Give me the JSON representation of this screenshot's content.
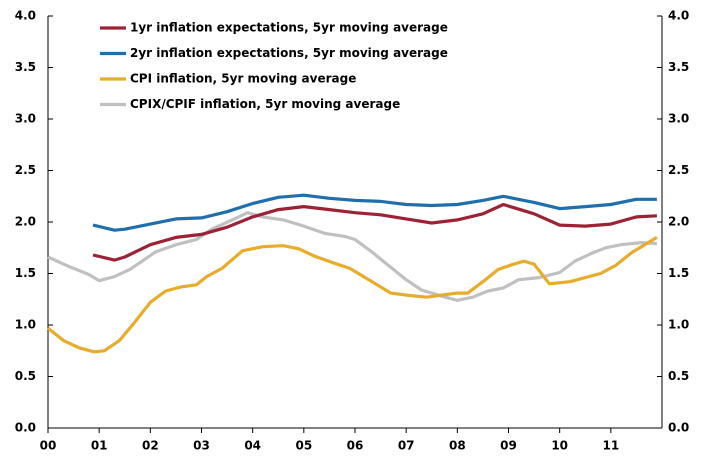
{
  "chart_data": {
    "type": "line",
    "xlim": [
      0,
      12
    ],
    "xticks": [
      {
        "value": 0,
        "label": "00"
      },
      {
        "value": 1,
        "label": "01"
      },
      {
        "value": 2,
        "label": "02"
      },
      {
        "value": 3,
        "label": "03"
      },
      {
        "value": 4,
        "label": "04"
      },
      {
        "value": 5,
        "label": "05"
      },
      {
        "value": 6,
        "label": "06"
      },
      {
        "value": 7,
        "label": "07"
      },
      {
        "value": 8,
        "label": "08"
      },
      {
        "value": 9,
        "label": "09"
      },
      {
        "value": 10,
        "label": "10"
      },
      {
        "value": 11,
        "label": "11"
      }
    ],
    "ylim": [
      0,
      4
    ],
    "yticks": [
      {
        "value": 0,
        "label": "0.0"
      },
      0.5,
      {
        "value": 1,
        "label": "1.0"
      },
      1.5,
      {
        "value": 2,
        "label": "2.0"
      },
      2.5,
      {
        "value": 3,
        "label": "3.0"
      },
      3.5,
      {
        "value": 4,
        "label": "4.0"
      }
    ],
    "legend": "upper left",
    "series": [
      {
        "name": "1yr inflation expectations, 5yr moving average",
        "color": "#9b2335",
        "x": [
          0.88,
          1.3,
          1.5,
          2,
          2.5,
          3,
          3.5,
          4,
          4.5,
          5,
          5.5,
          6,
          6.5,
          7,
          7.5,
          8,
          8.5,
          8.9,
          9.5,
          10,
          10.5,
          11,
          11.5,
          11.9
        ],
        "values": [
          1.68,
          1.63,
          1.66,
          1.78,
          1.85,
          1.88,
          1.95,
          2.05,
          2.12,
          2.15,
          2.12,
          2.09,
          2.07,
          2.03,
          1.99,
          2.02,
          2.08,
          2.17,
          2.08,
          1.97,
          1.96,
          1.98,
          2.05,
          2.06
        ]
      },
      {
        "name": "2yr inflation expectations, 5yr moving average",
        "color": "#1f6fad",
        "x": [
          0.88,
          1.3,
          1.5,
          2,
          2.5,
          3,
          3.5,
          4,
          4.5,
          5,
          5.5,
          6,
          6.5,
          7,
          7.5,
          8,
          8.5,
          8.9,
          9.5,
          10,
          10.5,
          11,
          11.5,
          11.9
        ],
        "values": [
          1.97,
          1.92,
          1.93,
          1.98,
          2.03,
          2.04,
          2.1,
          2.18,
          2.24,
          2.26,
          2.23,
          2.21,
          2.2,
          2.17,
          2.16,
          2.17,
          2.21,
          2.25,
          2.19,
          2.13,
          2.15,
          2.17,
          2.22,
          2.22
        ]
      },
      {
        "name": "CPI inflation, 5yr moving average",
        "color": "#e8ac2a",
        "x": [
          0,
          0.3,
          0.6,
          0.9,
          1.1,
          1.4,
          1.7,
          2,
          2.3,
          2.6,
          2.9,
          3.1,
          3.4,
          3.8,
          4.2,
          4.6,
          4.9,
          5.2,
          5.6,
          5.9,
          6.3,
          6.7,
          7,
          7.4,
          7.7,
          8,
          8.2,
          8.5,
          8.8,
          9.1,
          9.3,
          9.5,
          9.8,
          10.2,
          10.5,
          10.8,
          11.1,
          11.4,
          11.9
        ],
        "values": [
          0.97,
          0.85,
          0.78,
          0.74,
          0.75,
          0.85,
          1.03,
          1.22,
          1.33,
          1.37,
          1.39,
          1.47,
          1.55,
          1.72,
          1.76,
          1.77,
          1.74,
          1.67,
          1.6,
          1.55,
          1.43,
          1.31,
          1.29,
          1.27,
          1.29,
          1.31,
          1.31,
          1.42,
          1.54,
          1.59,
          1.62,
          1.59,
          1.4,
          1.42,
          1.46,
          1.5,
          1.58,
          1.7,
          1.85
        ]
      },
      {
        "name": "CPIX/CPIF inflation, 5yr moving average",
        "color": "#c0c0c0",
        "x": [
          0,
          0.4,
          0.8,
          1,
          1.3,
          1.6,
          1.9,
          2.1,
          2.5,
          2.9,
          3.2,
          3.6,
          3.9,
          4.2,
          4.6,
          5,
          5.4,
          5.8,
          6,
          6.3,
          6.6,
          7,
          7.3,
          7.7,
          8,
          8.3,
          8.6,
          8.9,
          9.2,
          9.6,
          10,
          10.3,
          10.6,
          10.9,
          11.2,
          11.6,
          11.9
        ],
        "values": [
          1.66,
          1.57,
          1.49,
          1.43,
          1.47,
          1.54,
          1.64,
          1.71,
          1.78,
          1.83,
          1.93,
          2.02,
          2.09,
          2.05,
          2.02,
          1.96,
          1.89,
          1.86,
          1.83,
          1.72,
          1.6,
          1.44,
          1.34,
          1.28,
          1.24,
          1.27,
          1.33,
          1.36,
          1.44,
          1.46,
          1.51,
          1.62,
          1.69,
          1.75,
          1.78,
          1.8,
          1.79
        ]
      }
    ]
  }
}
